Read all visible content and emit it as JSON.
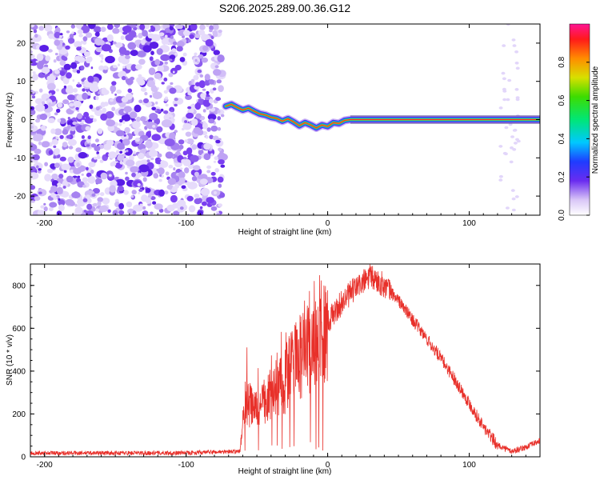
{
  "title": "S206.2025.289.00.36.G12",
  "chart_data": [
    {
      "type": "heatmap",
      "name": "spectrogram",
      "xlabel": "Height of straight line (km)",
      "ylabel": "Frequency (Hz)",
      "xlim": [
        -210,
        150
      ],
      "ylim": [
        -25,
        25
      ],
      "xticks": [
        -200,
        -100,
        0,
        100
      ],
      "yticks": [
        -20,
        -10,
        0,
        10,
        20
      ],
      "noise_region_x": [
        -210,
        -74
      ],
      "signal_start_x": -74,
      "signal_end_x": 150,
      "late_noise_x": [
        122,
        135
      ],
      "track": [
        {
          "x": -72,
          "f": 3.5
        },
        {
          "x": -68,
          "f": 4.0
        },
        {
          "x": -64,
          "f": 3.2
        },
        {
          "x": -60,
          "f": 2.5
        },
        {
          "x": -56,
          "f": 3.0
        },
        {
          "x": -52,
          "f": 2.2
        },
        {
          "x": -48,
          "f": 1.5
        },
        {
          "x": -44,
          "f": 1.2
        },
        {
          "x": -40,
          "f": 0.6
        },
        {
          "x": -36,
          "f": 0.3
        },
        {
          "x": -32,
          "f": -0.4
        },
        {
          "x": -28,
          "f": 0.2
        },
        {
          "x": -24,
          "f": -0.6
        },
        {
          "x": -20,
          "f": -1.6
        },
        {
          "x": -16,
          "f": -0.8
        },
        {
          "x": -12,
          "f": -1.4
        },
        {
          "x": -8,
          "f": -2.2
        },
        {
          "x": -4,
          "f": -1.4
        },
        {
          "x": 0,
          "f": -1.8
        },
        {
          "x": 4,
          "f": -0.8
        },
        {
          "x": 8,
          "f": -1.0
        },
        {
          "x": 12,
          "f": -0.2
        },
        {
          "x": 16,
          "f": 0.0
        },
        {
          "x": 20,
          "f": 0.0
        }
      ],
      "colorbar": {
        "label": "Normalized spectral amplitude",
        "range": [
          0,
          1
        ],
        "ticks": [
          "0.0",
          "0.2",
          "0.4",
          "0.6",
          "0.8"
        ]
      }
    },
    {
      "type": "line",
      "name": "snr",
      "xlabel": "Height of straight line (km)",
      "ylabel": "SNR (10 * v/v)",
      "xlim": [
        -210,
        150
      ],
      "ylim": [
        0,
        900
      ],
      "xticks": [
        -200,
        -100,
        0,
        100
      ],
      "yticks": [
        0,
        200,
        400,
        600,
        800
      ],
      "color": "#e8302a",
      "series_envelope": [
        {
          "x": -210,
          "y": 18
        },
        {
          "x": -100,
          "y": 18
        },
        {
          "x": -80,
          "y": 22
        },
        {
          "x": -62,
          "y": 25
        },
        {
          "x": -58,
          "y": 260
        },
        {
          "x": -50,
          "y": 210
        },
        {
          "x": -40,
          "y": 290
        },
        {
          "x": -30,
          "y": 360
        },
        {
          "x": -20,
          "y": 470
        },
        {
          "x": -10,
          "y": 560
        },
        {
          "x": 0,
          "y": 630
        },
        {
          "x": 10,
          "y": 720
        },
        {
          "x": 20,
          "y": 790
        },
        {
          "x": 30,
          "y": 840
        },
        {
          "x": 40,
          "y": 800
        },
        {
          "x": 50,
          "y": 730
        },
        {
          "x": 60,
          "y": 640
        },
        {
          "x": 70,
          "y": 550
        },
        {
          "x": 80,
          "y": 460
        },
        {
          "x": 90,
          "y": 360
        },
        {
          "x": 100,
          "y": 250
        },
        {
          "x": 110,
          "y": 140
        },
        {
          "x": 120,
          "y": 55
        },
        {
          "x": 130,
          "y": 25
        },
        {
          "x": 140,
          "y": 45
        },
        {
          "x": 150,
          "y": 75
        }
      ]
    }
  ]
}
